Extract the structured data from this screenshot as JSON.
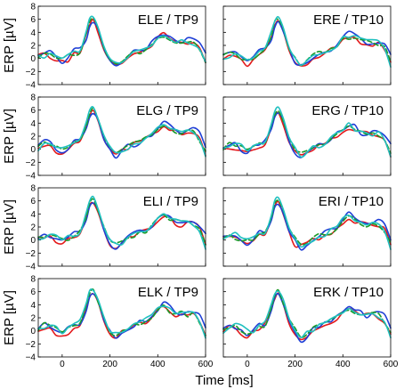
{
  "chart_data": {
    "type": "line",
    "xlabel": "Time [ms]",
    "ylabel": "ERP  [µV]",
    "xlim": [
      -100,
      600
    ],
    "ylim": [
      -4,
      8
    ],
    "xticks": [
      0,
      200,
      400,
      600
    ],
    "xtick_labels": [
      "0",
      "200",
      "400",
      "600"
    ],
    "yticks": [
      -4,
      -2,
      0,
      2,
      4,
      6,
      8
    ],
    "ytick_labels": [
      "−4",
      "−2",
      "0",
      "2",
      "4",
      "6",
      "8"
    ],
    "grid": false,
    "legend": "none",
    "series_colors": [
      "#e41a1c",
      "#1f3fd6",
      "#1b9a2a",
      "#20c0c0"
    ],
    "panels": [
      {
        "title": "ELE / TP9",
        "hemi": "L",
        "variant": 0
      },
      {
        "title": "ERE / TP10",
        "hemi": "R",
        "variant": 0
      },
      {
        "title": "ELG / TP9",
        "hemi": "L",
        "variant": 1
      },
      {
        "title": "ERG / TP10",
        "hemi": "R",
        "variant": 1
      },
      {
        "title": "ELI / TP9",
        "hemi": "L",
        "variant": 2
      },
      {
        "title": "ERI / TP10",
        "hemi": "R",
        "variant": 2
      },
      {
        "title": "ELK / TP9",
        "hemi": "L",
        "variant": 3
      },
      {
        "title": "ERK / TP10",
        "hemi": "R",
        "variant": 3
      }
    ],
    "series": [
      {
        "color": "#e41a1c",
        "dash": "solid",
        "x": [
          -100,
          -75,
          -50,
          -25,
          0,
          25,
          50,
          75,
          100,
          115,
          130,
          150,
          175,
          200,
          225,
          250,
          275,
          300,
          325,
          350,
          375,
          400,
          425,
          450,
          475,
          500,
          525,
          550,
          575,
          600
        ],
        "y": [
          0.2,
          0.6,
          0.4,
          -0.3,
          -0.6,
          -0.2,
          0.6,
          1.2,
          3.4,
          5.2,
          5.8,
          4.2,
          1.4,
          -0.4,
          -0.9,
          -0.4,
          0.2,
          0.6,
          1.0,
          1.4,
          2.2,
          3.0,
          3.6,
          3.2,
          2.6,
          2.4,
          2.4,
          2.3,
          1.6,
          -0.6
        ]
      },
      {
        "color": "#1f3fd6",
        "dash": "solid",
        "x": [
          -100,
          -75,
          -50,
          -25,
          0,
          25,
          50,
          75,
          100,
          115,
          130,
          150,
          175,
          200,
          225,
          250,
          275,
          300,
          325,
          350,
          375,
          400,
          425,
          450,
          475,
          500,
          525,
          550,
          575,
          600
        ],
        "y": [
          0.5,
          1.0,
          0.8,
          0.2,
          -0.4,
          0.4,
          1.2,
          1.4,
          3.0,
          5.0,
          5.6,
          4.4,
          1.6,
          -0.2,
          -1.2,
          -0.6,
          0.4,
          0.8,
          1.2,
          1.6,
          2.4,
          3.4,
          4.0,
          3.6,
          2.8,
          2.6,
          2.8,
          2.9,
          2.4,
          0.6
        ]
      },
      {
        "color": "#1b9a2a",
        "dash": "dash",
        "x": [
          -100,
          -75,
          -50,
          -25,
          0,
          25,
          50,
          75,
          100,
          115,
          130,
          150,
          175,
          200,
          225,
          250,
          275,
          300,
          325,
          350,
          375,
          400,
          425,
          450,
          475,
          500,
          525,
          550,
          575,
          600
        ],
        "y": [
          0.4,
          0.8,
          0.6,
          0.4,
          0.1,
          0.2,
          0.8,
          1.3,
          3.6,
          5.6,
          6.2,
          4.6,
          1.8,
          0.2,
          -0.5,
          -0.1,
          0.4,
          0.8,
          1.1,
          1.5,
          2.2,
          3.1,
          3.5,
          3.1,
          2.7,
          2.6,
          2.6,
          2.5,
          1.6,
          -0.3
        ]
      },
      {
        "color": "#20c0c0",
        "dash": "solid",
        "x": [
          -100,
          -75,
          -50,
          -25,
          0,
          25,
          50,
          75,
          100,
          115,
          130,
          150,
          175,
          200,
          225,
          250,
          275,
          300,
          325,
          350,
          375,
          400,
          425,
          450,
          475,
          500,
          525,
          550,
          575,
          600
        ],
        "y": [
          0.1,
          0.5,
          0.9,
          0.6,
          0.0,
          0.3,
          0.9,
          1.5,
          4.0,
          6.0,
          6.4,
          4.8,
          2.0,
          0.3,
          -0.6,
          -0.3,
          0.3,
          0.7,
          1.1,
          1.6,
          2.3,
          3.2,
          3.8,
          3.4,
          2.9,
          2.7,
          2.6,
          2.4,
          1.4,
          -1.0
        ]
      }
    ]
  }
}
